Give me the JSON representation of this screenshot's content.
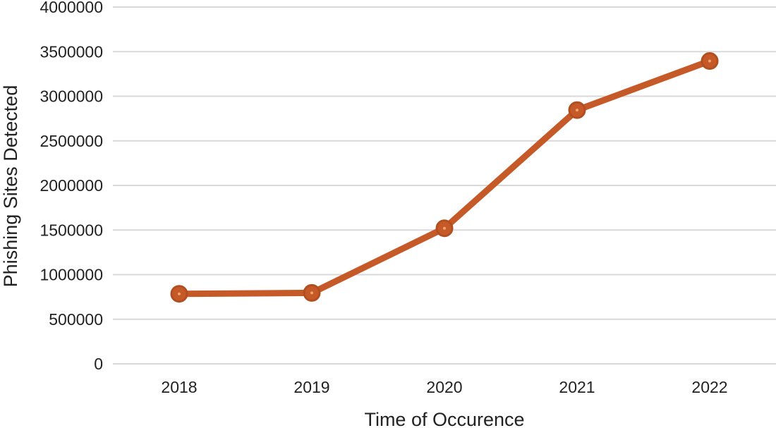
{
  "chart_data": {
    "type": "line",
    "title": "",
    "xlabel": "Time of Occurence",
    "ylabel": "Phishing Sites Detected",
    "categories": [
      "2018",
      "2019",
      "2020",
      "2021",
      "2022"
    ],
    "series": [
      {
        "values": [
          785000,
          795000,
          1520000,
          2845000,
          3395000
        ]
      }
    ],
    "ylim": [
      0,
      4000000
    ],
    "yticks": [
      "0",
      "500000",
      "1000000",
      "1500000",
      "2000000",
      "2500000",
      "3000000",
      "3500000",
      "4000000"
    ],
    "grid": true,
    "legend": "none",
    "line_color": "#c55a28",
    "marker_color": "#c55a28"
  }
}
